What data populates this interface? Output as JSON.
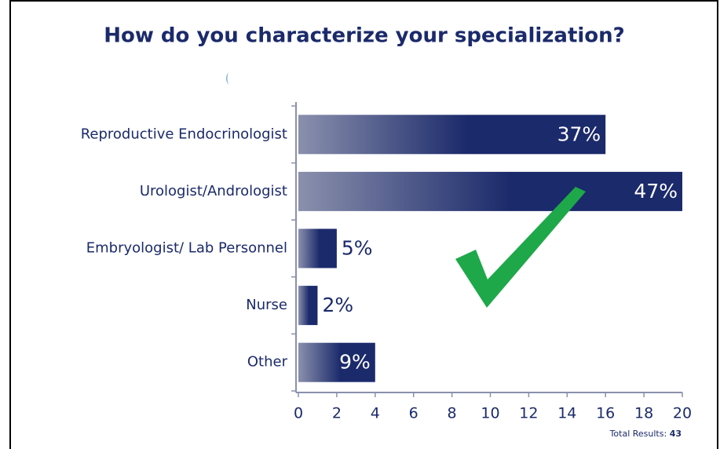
{
  "chart_data": {
    "type": "bar",
    "orientation": "horizontal",
    "title": "How do you characterize your specialization?",
    "categories": [
      "Reproductive Endocrinologist",
      "Urologist/Andrologist",
      "Embryologist/ Lab Personnel",
      "Nurse",
      "Other"
    ],
    "values": [
      16,
      20,
      2,
      1,
      4
    ],
    "data_labels": [
      "37%",
      "47%",
      "5%",
      "2%",
      "9%"
    ],
    "color": "#1b2a6b",
    "xlim": [
      0,
      20
    ],
    "xticks": [
      0,
      2,
      4,
      6,
      8,
      10,
      12,
      14,
      16,
      18,
      20
    ],
    "grid": false,
    "total_label": "Total Results:",
    "total": 43
  }
}
